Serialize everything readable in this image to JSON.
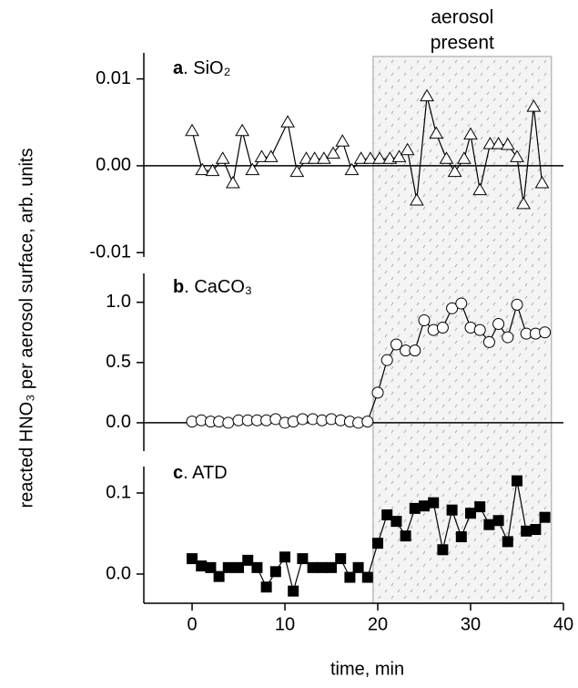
{
  "ylabel": "reacted HNO₃ per aerosol surface, arb. units",
  "shaded": {
    "span": [
      19.5,
      38.7
    ],
    "lines": [
      "aerosol",
      "present"
    ]
  },
  "chart_data": [
    {
      "type": "line",
      "letter": "a",
      "name": ". SiO₂",
      "marker": "triangle",
      "zero_line": true,
      "xlim": [
        -5.2,
        40
      ],
      "ylim": [
        -0.0105,
        0.013
      ],
      "yticks": [
        {
          "value": -0.01,
          "label": "-0.01"
        },
        {
          "value": 0,
          "label": "0.00"
        },
        {
          "value": 0.01,
          "label": "0.01"
        }
      ],
      "x": [
        0.0,
        1.1,
        2.2,
        3.3,
        4.4,
        5.4,
        6.5,
        7.5,
        8.5,
        10.3,
        11.3,
        12.3,
        13.2,
        14.2,
        15.2,
        16.2,
        17.2,
        18.2,
        19.2,
        20.2,
        21.3,
        22.3,
        23.2,
        24.2,
        25.3,
        26.3,
        27.4,
        28.3,
        29.3,
        30.0,
        31.0,
        32.1,
        33.0,
        34.0,
        35.0,
        35.7,
        36.8,
        37.7
      ],
      "values": [
        0.004,
        -0.0005,
        -0.0006,
        0.0008,
        -0.002,
        0.004,
        -0.0005,
        0.001,
        0.001,
        0.005,
        -0.0007,
        0.0008,
        0.0008,
        0.0008,
        0.0014,
        0.0028,
        -0.0005,
        0.0008,
        0.0008,
        0.0008,
        0.0008,
        0.001,
        0.0018,
        -0.004,
        0.008,
        0.0037,
        0.0008,
        -0.0007,
        0.0008,
        0.0036,
        -0.0028,
        0.0025,
        0.0025,
        0.0024,
        0.001,
        -0.0044,
        0.0068,
        -0.002
      ]
    },
    {
      "type": "line",
      "letter": "b",
      "name": ". CaCO₃",
      "marker": "circle",
      "zero_line": true,
      "xlim": [
        -5.2,
        40
      ],
      "ylim": [
        -0.235,
        1.24
      ],
      "yticks": [
        {
          "value": 0,
          "label": "0.0"
        },
        {
          "value": 0.5,
          "label": "0.5"
        },
        {
          "value": 1,
          "label": "1.0"
        }
      ],
      "x": [
        0,
        1,
        2,
        2.9,
        3.9,
        5,
        6,
        7,
        8,
        9,
        10,
        10.9,
        11.9,
        13,
        14,
        15,
        16,
        17,
        17.9,
        18.9,
        20,
        21,
        22,
        23,
        24,
        25,
        26,
        27,
        28,
        29,
        30,
        31,
        32,
        33,
        34,
        35,
        36,
        37,
        38
      ],
      "values": [
        0.01,
        0.02,
        0.01,
        0.01,
        0.0,
        0.02,
        0.02,
        0.02,
        0.02,
        0.03,
        0.0,
        0.01,
        0.03,
        0.03,
        0.02,
        0.03,
        0.02,
        0.01,
        0.0,
        0.01,
        0.25,
        0.52,
        0.65,
        0.6,
        0.6,
        0.85,
        0.77,
        0.79,
        0.95,
        0.99,
        0.79,
        0.77,
        0.67,
        0.82,
        0.71,
        0.98,
        0.74,
        0.74,
        0.75
      ]
    },
    {
      "type": "line",
      "letter": "c",
      "name": ". ATD",
      "marker": "square",
      "zero_line": false,
      "xlim": [
        -5.2,
        40
      ],
      "ylim": [
        -0.036,
        0.1326
      ],
      "yticks": [
        {
          "value": 0,
          "label": "0.0"
        },
        {
          "value": 0.1,
          "label": "0.1"
        }
      ],
      "xticks": [
        0,
        10,
        20,
        30,
        40
      ],
      "xlabel": "time, min",
      "x": [
        0,
        1,
        2,
        2.9,
        3.9,
        5,
        6,
        7,
        8,
        9,
        10,
        10.9,
        11.9,
        13,
        14,
        15,
        16,
        17,
        17.9,
        18.9,
        20,
        21,
        22,
        23,
        24,
        25,
        26,
        27,
        28,
        29,
        30,
        31,
        32,
        33,
        34,
        35,
        36,
        37,
        38
      ],
      "values": [
        0.019,
        0.01,
        0.008,
        -0.003,
        0.008,
        0.008,
        0.017,
        0.008,
        -0.016,
        0.003,
        0.021,
        -0.021,
        0.019,
        0.008,
        0.008,
        0.008,
        0.019,
        -0.004,
        0.008,
        -0.004,
        0.038,
        0.073,
        0.065,
        0.047,
        0.081,
        0.084,
        0.088,
        0.03,
        0.079,
        0.046,
        0.075,
        0.083,
        0.061,
        0.066,
        0.04,
        0.115,
        0.053,
        0.055,
        0.07
      ]
    }
  ]
}
